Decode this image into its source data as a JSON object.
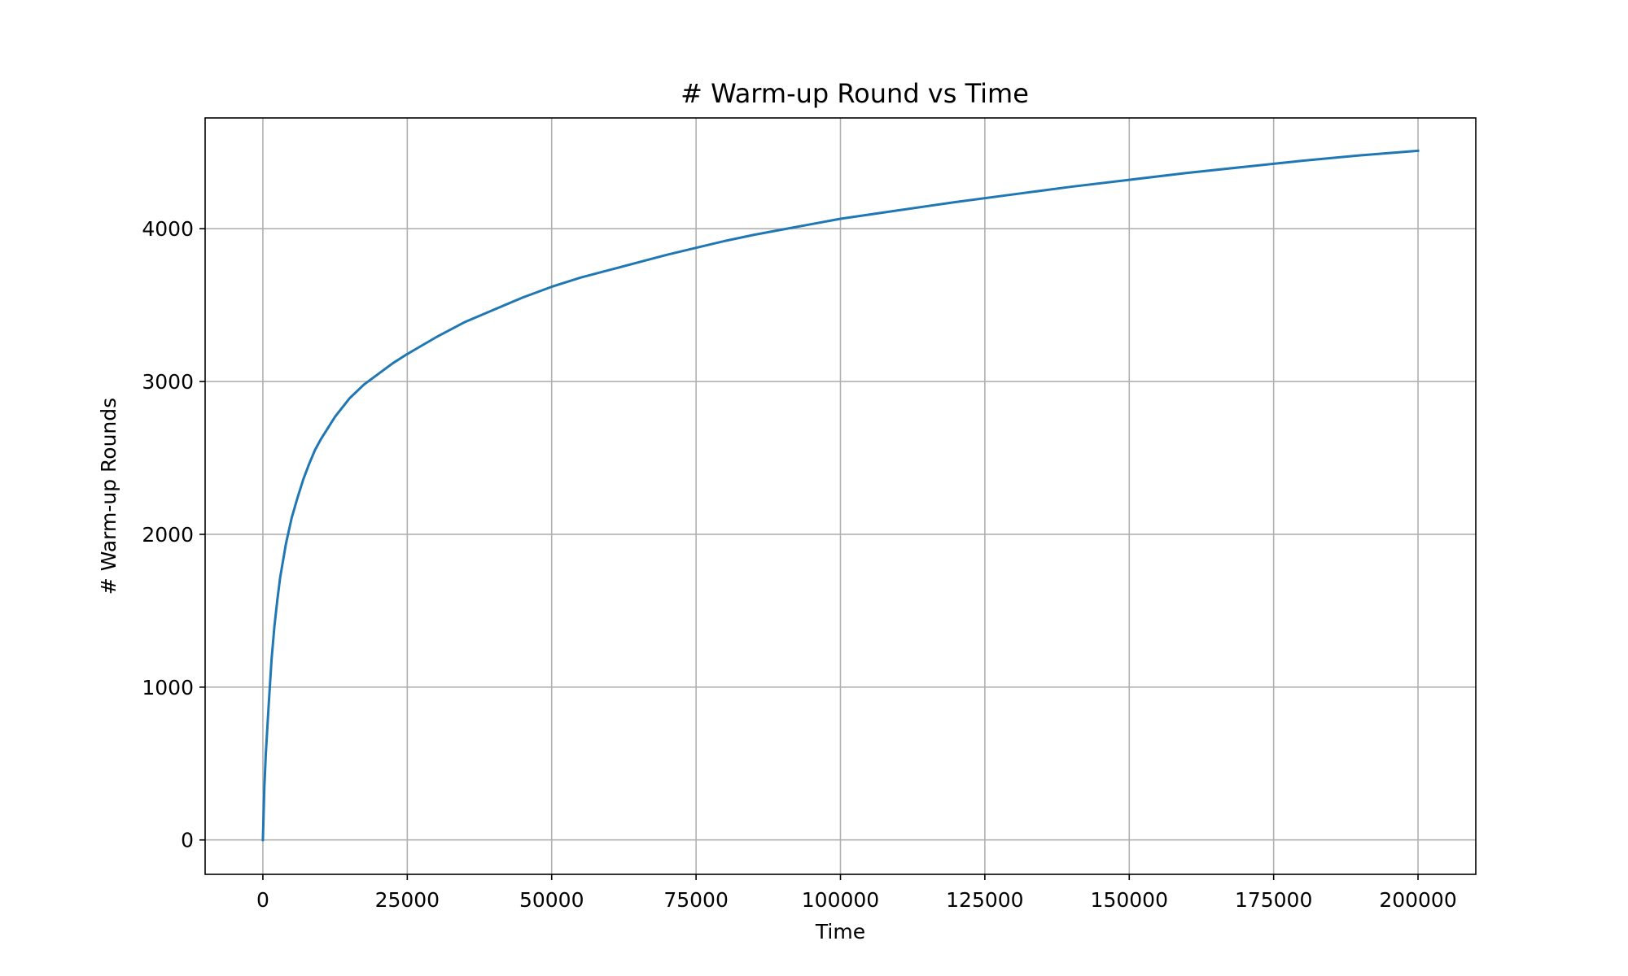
{
  "chart_data": {
    "type": "line",
    "title": "# Warm-up Round vs Time",
    "xlabel": "Time",
    "ylabel": "# Warm-up Rounds",
    "xlim": [
      -10000,
      210000
    ],
    "ylim": [
      -225,
      4725
    ],
    "x_ticks": [
      0,
      25000,
      50000,
      75000,
      100000,
      125000,
      150000,
      175000,
      200000
    ],
    "x_tick_labels": [
      "0",
      "25000",
      "50000",
      "75000",
      "100000",
      "125000",
      "150000",
      "175000",
      "200000"
    ],
    "y_ticks": [
      0,
      1000,
      2000,
      3000,
      4000
    ],
    "y_tick_labels": [
      "0",
      "1000",
      "2000",
      "3000",
      "4000"
    ],
    "grid": true,
    "colors": {
      "series": "#1f77b4",
      "grid": "#b0b0b0",
      "axes": "#000000"
    },
    "series": [
      {
        "x": [
          0,
          250,
          500,
          1000,
          1500,
          2000,
          2500,
          3000,
          4000,
          5000,
          6000,
          7000,
          8000,
          9000,
          10000,
          12500,
          15000,
          17500,
          20000,
          22500,
          25000,
          30000,
          35000,
          40000,
          45000,
          50000,
          55000,
          60000,
          65000,
          70000,
          75000,
          80000,
          85000,
          90000,
          95000,
          100000,
          110000,
          120000,
          130000,
          140000,
          150000,
          160000,
          170000,
          180000,
          190000,
          200000
        ],
        "y": [
          0,
          340,
          560,
          880,
          1180,
          1400,
          1570,
          1720,
          1940,
          2110,
          2240,
          2360,
          2460,
          2550,
          2620,
          2770,
          2890,
          2980,
          3050,
          3120,
          3180,
          3290,
          3390,
          3470,
          3550,
          3620,
          3680,
          3730,
          3780,
          3830,
          3875,
          3920,
          3960,
          3995,
          4030,
          4065,
          4120,
          4175,
          4225,
          4275,
          4320,
          4365,
          4405,
          4445,
          4480,
          4510
        ]
      }
    ]
  }
}
